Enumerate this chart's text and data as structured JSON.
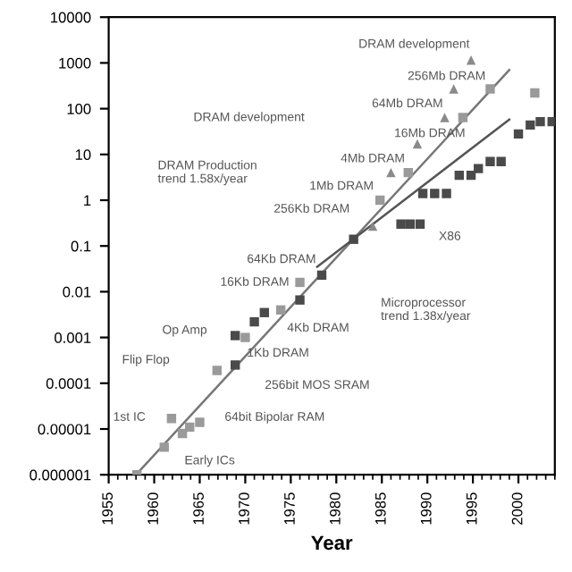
{
  "chart_data": {
    "type": "scatter",
    "xlabel": "Year",
    "log": "y",
    "grid": false,
    "xlim": [
      1955,
      2004
    ],
    "xticks": [
      1955,
      1960,
      1965,
      1970,
      1975,
      1980,
      1985,
      1990,
      1995,
      2000
    ],
    "ylim": [
      1e-06,
      10000
    ],
    "yticks": [
      {
        "value": 1e-06,
        "label": "0.000001"
      },
      {
        "value": 1e-05,
        "label": "0.00001"
      },
      {
        "value": 0.0001,
        "label": "0.0001"
      },
      {
        "value": 0.001,
        "label": "0.001"
      },
      {
        "value": 0.01,
        "label": "0.01"
      },
      {
        "value": 0.1,
        "label": "0.1"
      },
      1,
      10,
      100,
      1000,
      10000
    ],
    "series": [
      {
        "marker": "square",
        "color": "#9a9a9a",
        "x": [
          1958.1,
          1961.1,
          1961.9,
          1963.1,
          1963.9,
          1965.0,
          1966.9,
          1970.0,
          1973.9,
          1976.0,
          1984.8,
          1987.9,
          1993.9,
          1996.9,
          2001.8
        ],
        "values": [
          1e-06,
          4e-06,
          1.7e-05,
          8e-06,
          1.1e-05,
          1.4e-05,
          0.00019,
          0.001,
          0.004,
          0.016,
          1,
          4,
          64,
          270,
          220
        ]
      },
      {
        "marker": "square",
        "color": "#4a4a4a",
        "x": [
          1968.9,
          1968.9,
          1971.0,
          1972.1,
          1976.0,
          1978.4,
          1981.9,
          1987.1,
          1988.1,
          1989.2,
          1989.5,
          1990.8,
          1992.1,
          1993.5,
          1994.8,
          1995.6,
          1996.9,
          1998.1,
          2000.0,
          2001.3,
          2002.4,
          2003.7
        ],
        "values": [
          0.0011,
          0.00025,
          0.0022,
          0.0035,
          0.0066,
          0.023,
          0.14,
          0.3,
          0.3,
          0.3,
          1.4,
          1.4,
          1.4,
          3.5,
          3.5,
          4.9,
          7,
          7,
          28,
          44,
          52,
          52
        ]
      },
      {
        "marker": "triangle",
        "color": "#8a8a8a",
        "x": [
          1984.0,
          1986.0,
          1988.9,
          1991.9,
          1992.9,
          1994.8
        ],
        "values": [
          0.27,
          4,
          17,
          64,
          270,
          1150
        ]
      },
      {
        "type": "line",
        "marker": "none",
        "color": "#777777",
        "x": [
          1958,
          1999
        ],
        "values": [
          1e-06,
          700
        ]
      },
      {
        "type": "line",
        "marker": "none",
        "color": "#555555",
        "x": [
          1977.9,
          1999
        ],
        "values": [
          0.035,
          58
        ]
      }
    ],
    "annotations": [
      "DRAM development",
      "256Mb DRAM",
      "DRAM development",
      "64Mb DRAM",
      "16Mb DRAM",
      "4Mb DRAM",
      "1Mb DRAM",
      "256Kb DRAM",
      "64Kb DRAM",
      "16Kb DRAM",
      "4Kb DRAM",
      "1Kb DRAM",
      "256bit MOS SRAM",
      "64bit Bipolar RAM",
      "Op Amp",
      "Flip Flop",
      "1st IC",
      "Early ICs",
      "DRAM Production\ntrend 1.58x/year",
      "Microprocessor\ntrend 1.38x/year",
      "X86"
    ]
  }
}
